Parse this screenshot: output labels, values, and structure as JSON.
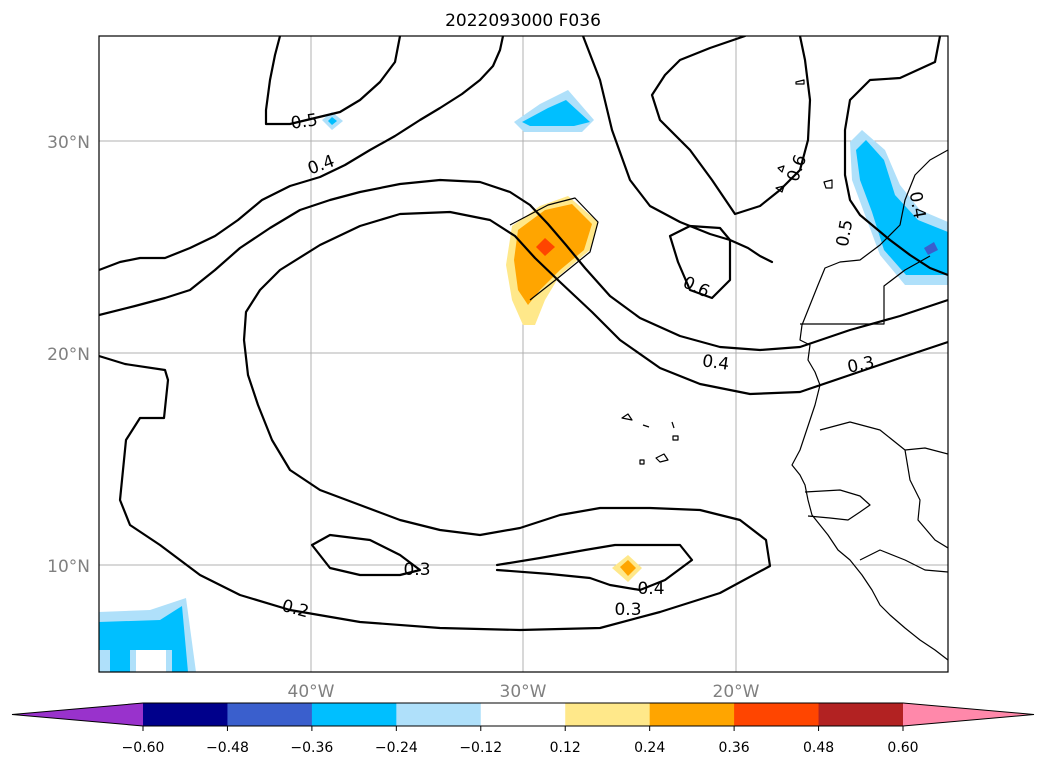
{
  "chart_data": {
    "type": "contour_map",
    "title": "2022093000 F036",
    "x_ticks": [
      "40°W",
      "30°W",
      "20°W"
    ],
    "y_ticks": [
      "30°N",
      "20°N",
      "10°N"
    ],
    "colorbar": {
      "ticks": [
        "−0.60",
        "−0.48",
        "−0.36",
        "−0.24",
        "−0.12",
        "0.12",
        "0.24",
        "0.36",
        "0.48",
        "0.60"
      ],
      "levels": [
        -0.6,
        -0.48,
        -0.36,
        -0.24,
        -0.12,
        0.12,
        0.24,
        0.36,
        0.48,
        0.6
      ],
      "colors": [
        "#9932cc",
        "#00008b",
        "#3a5fcd",
        "#00bfff",
        "#afe0fa",
        "#ffffff",
        "#ffe88a",
        "#ffa500",
        "#ff4500",
        "#b22222",
        "#ff88aa"
      ],
      "extend": "both"
    },
    "contour_labels": [
      {
        "text": "0.5",
        "level": 0.5
      },
      {
        "text": "0.4",
        "level": 0.4
      },
      {
        "text": "0.6",
        "level": 0.6
      },
      {
        "text": "0.6",
        "level": 0.6
      },
      {
        "text": "0.5",
        "level": 0.5
      },
      {
        "text": "0.4",
        "level": 0.4
      },
      {
        "text": "0.4",
        "level": 0.4
      },
      {
        "text": "0.3",
        "level": 0.3
      },
      {
        "text": "0.3",
        "level": 0.3
      },
      {
        "text": "0.2",
        "level": 0.2
      },
      {
        "text": "0.4",
        "level": 0.4
      },
      {
        "text": "0.3",
        "level": 0.3
      }
    ],
    "lon_range": [
      -50,
      -10
    ],
    "lat_range": [
      5,
      35
    ],
    "grid": true
  }
}
